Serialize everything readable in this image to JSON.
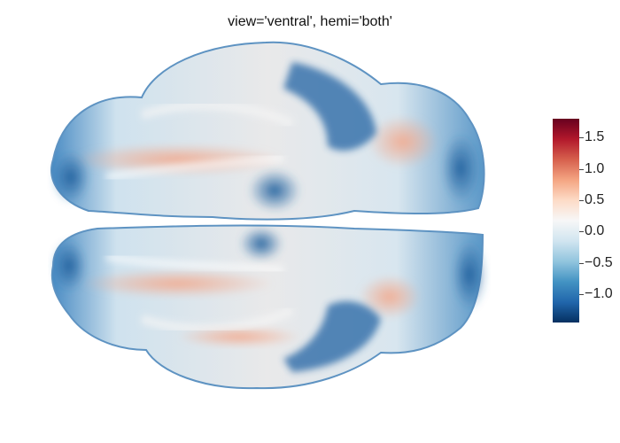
{
  "title": "view='ventral', hemi='both'",
  "colorbar": {
    "range": [
      -1.45,
      1.8
    ],
    "ticks": [
      {
        "value": 1.5,
        "label": "1.5"
      },
      {
        "value": 1.0,
        "label": "1.0"
      },
      {
        "value": 0.5,
        "label": "0.5"
      },
      {
        "value": 0.0,
        "label": "0.0"
      },
      {
        "value": -0.5,
        "label": "−0.5"
      },
      {
        "value": -1.0,
        "label": "−1.0"
      }
    ],
    "colors": [
      "#053061",
      "#2166ac",
      "#4393c3",
      "#92c5de",
      "#d1e5f0",
      "#f7f7f7",
      "#fddbc7",
      "#f4a582",
      "#d6604d",
      "#b2182b",
      "#67001f"
    ]
  }
}
